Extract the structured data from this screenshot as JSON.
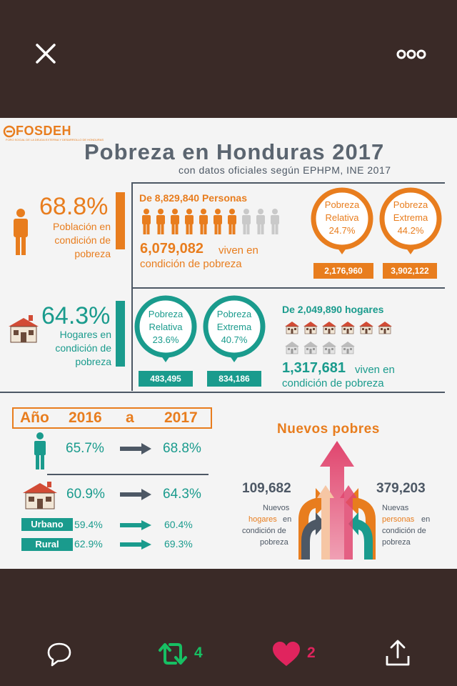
{
  "viewer": {
    "close_icon": "close-icon",
    "more_icon": "more-options-icon"
  },
  "infographic": {
    "logo": "FOSDEH",
    "logo_subtitle": "FORO SOCIAL DE LA DEUDA EXTERNA Y DESARROLLO DE HONDURAS",
    "title": "Pobreza en Honduras 2017",
    "subtitle": "con datos oficiales según EPHPM, INE 2017",
    "population": {
      "percent": "68.8%",
      "description": "Población en condición de pobreza",
      "total_label": "De 8,829,840 Personas",
      "poor_number": "6,079,082",
      "poor_text_1": "viven en",
      "poor_text_2": "condición de pobreza",
      "people_filled_fraction": 0.7,
      "relative_label_1": "Pobreza",
      "relative_label_2": "Relativa",
      "relative_pct": "24.7%",
      "relative_count": "2,176,960",
      "extreme_label_1": "Pobreza",
      "extreme_label_2": "Extrema",
      "extreme_pct": "44.2%",
      "extreme_count": "3,902,122"
    },
    "households": {
      "percent": "64.3%",
      "description": "Hogares en condición de pobreza",
      "relative_label_1": "Pobreza",
      "relative_label_2": "Relativa",
      "relative_pct": "23.6%",
      "relative_count": "483,495",
      "extreme_label_1": "Pobreza",
      "extreme_label_2": "Extrema",
      "extreme_pct": "40.7%",
      "extreme_count": "834,186",
      "total_label": "De 2,049,890 hogares",
      "poor_number": "1,317,681",
      "poor_text_1": "viven en",
      "poor_text_2": "condición de pobreza"
    },
    "comparison": {
      "year_label": "Año",
      "year_from": "2016",
      "year_sep": "a",
      "year_to": "2017",
      "people_from": "65.7%",
      "people_to": "68.8%",
      "households_from": "60.9%",
      "households_to": "64.3%",
      "urban_label": "Urbano",
      "urban_from": "59.4%",
      "urban_to": "60.4%",
      "rural_label": "Rural",
      "rural_from": "62.9%",
      "rural_to": "69.3%"
    },
    "new_poor": {
      "title": "Nuevos pobres",
      "households_number": "109,682",
      "households_text_1": "Nuevos",
      "households_text_2": "hogares",
      "households_text_3": "en",
      "households_text_4": "condición de",
      "households_text_5": "pobreza",
      "people_number": "379,203",
      "people_text_1": "Nuevas",
      "people_text_2": "personas",
      "people_text_3": "en",
      "people_text_4": "condición de",
      "people_text_5": "pobreza"
    },
    "colors": {
      "orange": "#e87d1e",
      "teal": "#1a9b8d",
      "slate": "#4d5865",
      "pink": "#e0456e"
    }
  },
  "actions": {
    "reply_icon": "reply-icon",
    "retweet_count": "4",
    "like_count": "2",
    "share_icon": "share-icon",
    "retweet_color": "#17bf63",
    "like_color": "#e0245e"
  }
}
